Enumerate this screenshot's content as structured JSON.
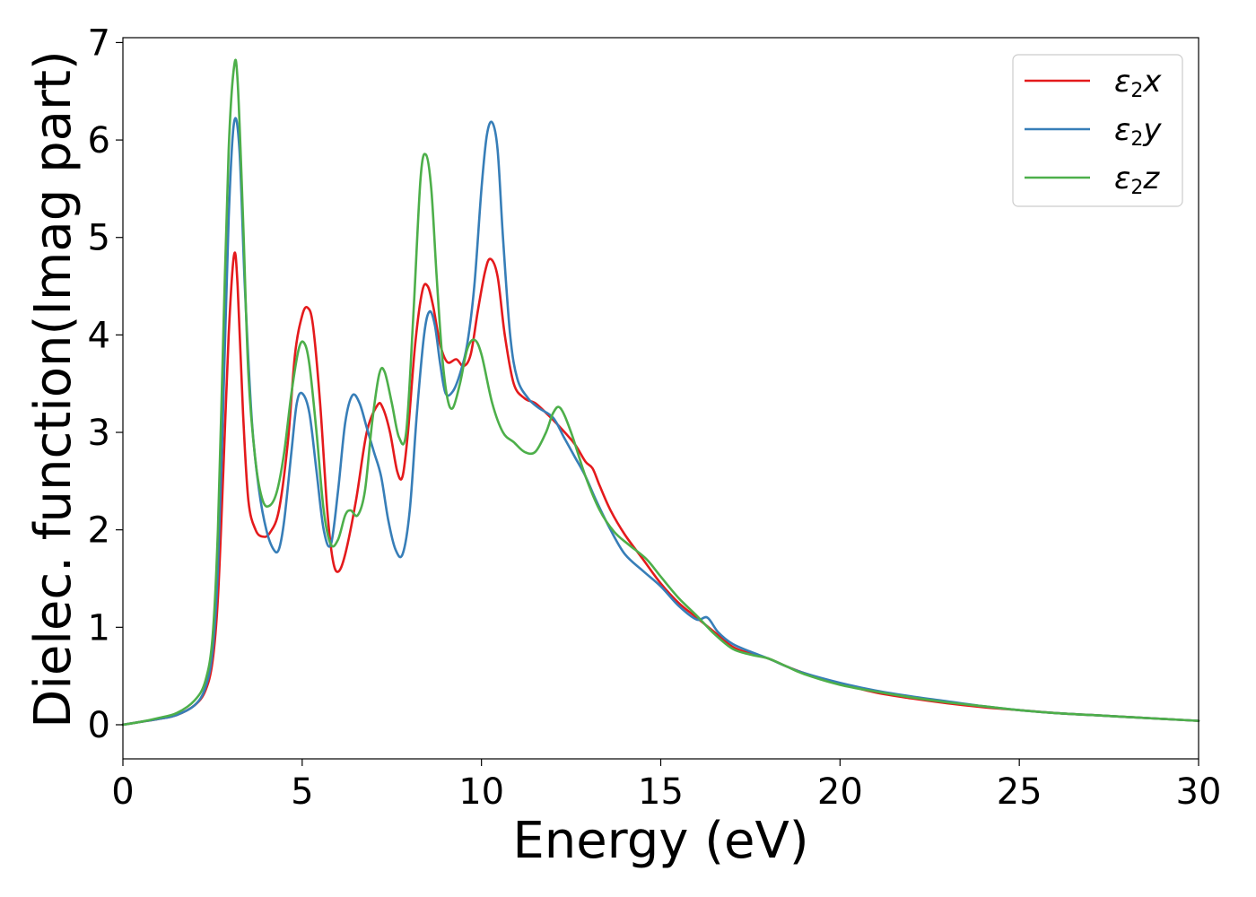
{
  "chart_data": {
    "type": "line",
    "title": "",
    "xlabel": "Energy (eV)",
    "ylabel": "Dielec. function(Imag part)",
    "xlim": [
      0,
      30
    ],
    "ylim": [
      -0.35,
      7.05
    ],
    "xticks": [
      0,
      5,
      10,
      15,
      20,
      25,
      30
    ],
    "yticks": [
      0,
      1,
      2,
      3,
      4,
      5,
      6,
      7
    ],
    "grid": false,
    "legend_position": "top-right",
    "series": [
      {
        "name": "ε2x",
        "name_base": "ε",
        "name_sub": "2",
        "name_var": "x",
        "color": "#e41a1c",
        "x": [
          0,
          0.5,
          1.0,
          1.5,
          2.0,
          2.3,
          2.5,
          2.65,
          2.8,
          2.95,
          3.1,
          3.2,
          3.35,
          3.5,
          3.7,
          3.9,
          4.1,
          4.35,
          4.6,
          4.8,
          5.0,
          5.15,
          5.3,
          5.5,
          5.7,
          5.85,
          6.0,
          6.2,
          6.5,
          6.8,
          7.1,
          7.25,
          7.45,
          7.65,
          7.8,
          7.95,
          8.15,
          8.35,
          8.5,
          8.65,
          8.85,
          9.05,
          9.3,
          9.5,
          9.7,
          9.9,
          10.1,
          10.25,
          10.45,
          10.65,
          10.9,
          11.2,
          11.5,
          11.8,
          12.2,
          12.6,
          12.9,
          13.1,
          13.3,
          13.6,
          14.0,
          14.5,
          15.0,
          15.5,
          16.0,
          16.5,
          17.0,
          17.5,
          18.0,
          18.5,
          19.0,
          19.5,
          20.0,
          21.0,
          22.0,
          23.0,
          24.0,
          25.0,
          26.0,
          27.0,
          28.0,
          29.0,
          30.0
        ],
        "y": [
          0.0,
          0.03,
          0.06,
          0.1,
          0.2,
          0.35,
          0.65,
          1.3,
          2.6,
          4.0,
          4.82,
          4.5,
          3.2,
          2.3,
          2.0,
          1.93,
          1.97,
          2.2,
          2.9,
          3.8,
          4.2,
          4.28,
          4.1,
          3.3,
          2.2,
          1.7,
          1.57,
          1.75,
          2.3,
          3.0,
          3.28,
          3.25,
          3.0,
          2.6,
          2.55,
          3.0,
          3.9,
          4.45,
          4.5,
          4.3,
          3.9,
          3.72,
          3.75,
          3.68,
          3.8,
          4.25,
          4.65,
          4.78,
          4.6,
          4.0,
          3.5,
          3.35,
          3.3,
          3.2,
          3.05,
          2.88,
          2.7,
          2.63,
          2.45,
          2.2,
          1.95,
          1.7,
          1.45,
          1.25,
          1.1,
          0.95,
          0.8,
          0.73,
          0.68,
          0.6,
          0.53,
          0.47,
          0.42,
          0.33,
          0.27,
          0.22,
          0.18,
          0.15,
          0.12,
          0.1,
          0.08,
          0.06,
          0.04
        ]
      },
      {
        "name": "ε2y",
        "name_base": "ε",
        "name_sub": "2",
        "name_var": "y",
        "color": "#377eb8",
        "x": [
          0,
          0.5,
          1.0,
          1.5,
          2.0,
          2.3,
          2.5,
          2.65,
          2.8,
          2.95,
          3.1,
          3.25,
          3.4,
          3.6,
          3.8,
          4.0,
          4.2,
          4.35,
          4.5,
          4.7,
          4.85,
          5.0,
          5.2,
          5.4,
          5.6,
          5.8,
          6.0,
          6.2,
          6.4,
          6.6,
          6.8,
          7.0,
          7.2,
          7.4,
          7.6,
          7.8,
          8.0,
          8.2,
          8.4,
          8.55,
          8.7,
          8.85,
          9.0,
          9.2,
          9.4,
          9.6,
          9.8,
          10.0,
          10.15,
          10.3,
          10.45,
          10.6,
          10.8,
          11.0,
          11.3,
          11.6,
          12.0,
          12.3,
          12.6,
          12.9,
          13.2,
          13.6,
          14.0,
          14.5,
          15.0,
          15.5,
          16.0,
          16.3,
          16.6,
          17.0,
          17.5,
          18.0,
          18.5,
          19.0,
          20.0,
          21.0,
          22.0,
          23.0,
          24.0,
          25.0,
          26.0,
          27.0,
          28.0,
          29.0,
          30.0
        ],
        "y": [
          0.0,
          0.03,
          0.06,
          0.1,
          0.2,
          0.38,
          0.75,
          1.6,
          3.3,
          5.2,
          6.18,
          5.9,
          4.5,
          3.1,
          2.4,
          2.0,
          1.8,
          1.8,
          2.1,
          2.8,
          3.3,
          3.4,
          3.2,
          2.6,
          2.0,
          1.85,
          2.4,
          3.1,
          3.38,
          3.3,
          3.05,
          2.8,
          2.55,
          2.1,
          1.8,
          1.75,
          2.2,
          3.2,
          4.0,
          4.24,
          4.1,
          3.7,
          3.4,
          3.42,
          3.6,
          3.9,
          4.5,
          5.5,
          6.05,
          6.18,
          5.9,
          5.0,
          4.0,
          3.55,
          3.35,
          3.25,
          3.15,
          2.95,
          2.75,
          2.55,
          2.3,
          2.0,
          1.75,
          1.58,
          1.42,
          1.22,
          1.08,
          1.1,
          0.95,
          0.83,
          0.75,
          0.68,
          0.6,
          0.53,
          0.43,
          0.35,
          0.29,
          0.24,
          0.19,
          0.15,
          0.12,
          0.1,
          0.08,
          0.06,
          0.04
        ]
      },
      {
        "name": "ε2z",
        "name_base": "ε",
        "name_sub": "2",
        "name_var": "z",
        "color": "#4daf4a",
        "x": [
          0,
          0.5,
          1.0,
          1.5,
          2.0,
          2.3,
          2.5,
          2.65,
          2.8,
          2.95,
          3.1,
          3.2,
          3.35,
          3.5,
          3.7,
          3.9,
          4.1,
          4.3,
          4.5,
          4.7,
          4.9,
          5.05,
          5.2,
          5.4,
          5.6,
          5.8,
          6.0,
          6.2,
          6.35,
          6.55,
          6.75,
          6.95,
          7.15,
          7.3,
          7.5,
          7.7,
          7.9,
          8.1,
          8.3,
          8.45,
          8.6,
          8.75,
          8.9,
          9.05,
          9.2,
          9.4,
          9.6,
          9.8,
          10.0,
          10.3,
          10.6,
          10.9,
          11.2,
          11.5,
          11.8,
          12.0,
          12.2,
          12.5,
          12.9,
          13.3,
          13.7,
          14.1,
          14.6,
          15.0,
          15.5,
          16.0,
          16.5,
          17.0,
          17.5,
          18.0,
          18.5,
          19.0,
          20.0,
          21.0,
          22.0,
          23.0,
          24.0,
          25.0,
          26.0,
          27.0,
          28.0,
          29.0,
          30.0
        ],
        "y": [
          0.0,
          0.03,
          0.07,
          0.12,
          0.25,
          0.45,
          0.9,
          2.0,
          4.0,
          5.9,
          6.75,
          6.6,
          5.2,
          3.6,
          2.7,
          2.3,
          2.25,
          2.4,
          2.8,
          3.4,
          3.85,
          3.92,
          3.7,
          3.0,
          2.2,
          1.85,
          1.9,
          2.15,
          2.2,
          2.15,
          2.4,
          3.1,
          3.6,
          3.62,
          3.3,
          2.95,
          3.0,
          4.2,
          5.6,
          5.85,
          5.5,
          4.6,
          3.8,
          3.35,
          3.25,
          3.5,
          3.85,
          3.95,
          3.8,
          3.3,
          3.0,
          2.9,
          2.8,
          2.8,
          3.0,
          3.2,
          3.25,
          3.0,
          2.55,
          2.2,
          1.98,
          1.85,
          1.7,
          1.52,
          1.3,
          1.12,
          0.93,
          0.78,
          0.72,
          0.68,
          0.6,
          0.52,
          0.41,
          0.34,
          0.28,
          0.23,
          0.19,
          0.15,
          0.12,
          0.1,
          0.08,
          0.06,
          0.04
        ]
      }
    ]
  }
}
